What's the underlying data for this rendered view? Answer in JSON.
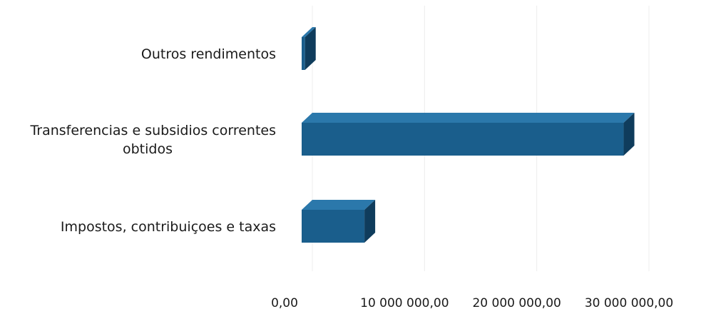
{
  "chart_data": {
    "type": "bar",
    "orientation": "horizontal",
    "style": "3d",
    "categories": [
      "Outros rendimentos",
      "Transferencias e subsidios correntes obtidos",
      "Impostos, contribuiçoes e taxas"
    ],
    "category_lines": [
      [
        "Outros rendimentos"
      ],
      [
        "Transferencias e subsidios correntes",
        "obtidos"
      ],
      [
        "Impostos, contribuiçoes e taxas"
      ]
    ],
    "values": [
      300000,
      28700000,
      5600000
    ],
    "xlim": [
      0,
      30000000
    ],
    "x_ticks": [
      0,
      10000000,
      20000000,
      30000000
    ],
    "x_tick_labels": [
      "0,00",
      "10 000 000,00",
      "20 000 000,00",
      "30 000 000,00"
    ],
    "title": "",
    "xlabel": "",
    "ylabel": "",
    "grid": true,
    "legend": "none",
    "colors": {
      "bar_front": "#1a5e8c",
      "bar_top": "#2b78ab",
      "bar_side": "#0f3c5c"
    }
  }
}
